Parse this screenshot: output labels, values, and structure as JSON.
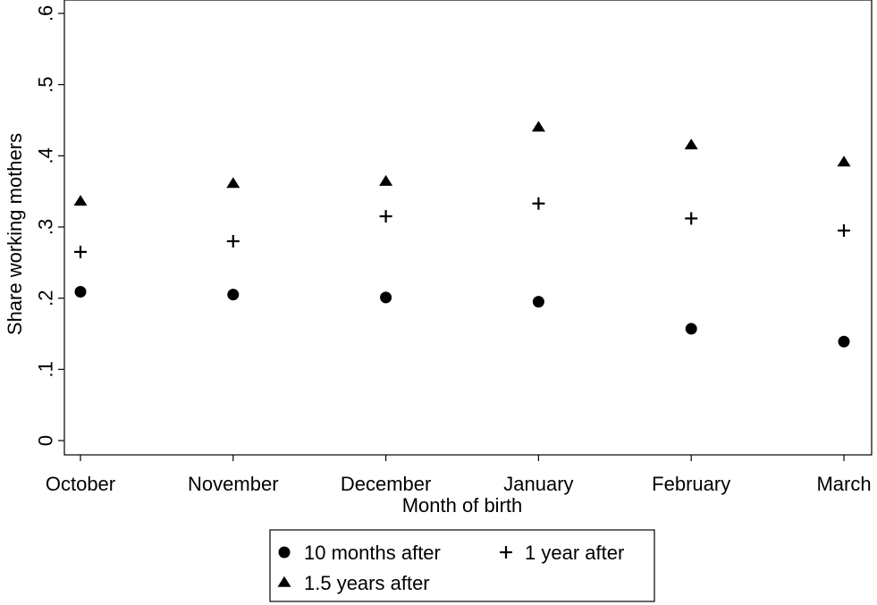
{
  "chart_data": {
    "type": "scatter",
    "title": "",
    "xlabel": "Month of birth",
    "ylabel": "Share working mothers",
    "categories": [
      "October",
      "November",
      "December",
      "January",
      "February",
      "March"
    ],
    "ylim": [
      0,
      0.6
    ],
    "yticks": [
      0,
      0.1,
      0.2,
      0.3,
      0.4,
      0.5,
      0.6
    ],
    "ytick_labels": [
      "0",
      ".1",
      ".2",
      ".3",
      ".4",
      ".5",
      ".6"
    ],
    "grid": false,
    "legend_position": "bottom",
    "series": [
      {
        "name": "10 months after",
        "marker": "circle",
        "values": [
          0.209,
          0.205,
          0.201,
          0.195,
          0.157,
          0.139
        ]
      },
      {
        "name": "1 year after",
        "marker": "plus",
        "values": [
          0.265,
          0.28,
          0.315,
          0.333,
          0.312,
          0.295
        ]
      },
      {
        "name": "1.5 years after",
        "marker": "triangle",
        "values": [
          0.336,
          0.361,
          0.364,
          0.44,
          0.415,
          0.391
        ]
      }
    ]
  }
}
